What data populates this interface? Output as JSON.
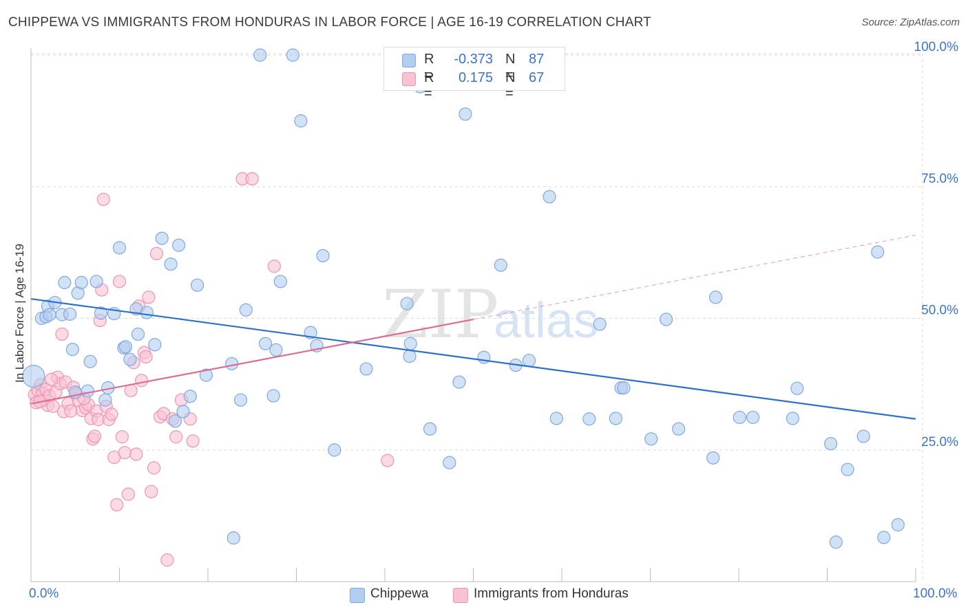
{
  "title": "CHIPPEWA VS IMMIGRANTS FROM HONDURAS IN LABOR FORCE | AGE 16-19 CORRELATION CHART",
  "source": "Source: ZipAtlas.com",
  "watermark": {
    "zip": "ZIP",
    "atlas": "atlas"
  },
  "legend": {
    "r_label": "R =",
    "n_label": "N =",
    "rows": [
      {
        "series": "Chippewa",
        "r": "-0.373",
        "n": "87"
      },
      {
        "series": "Immigrants from Honduras",
        "r": "0.175",
        "n": "67"
      }
    ]
  },
  "colors": {
    "chippewa_fill": "#b3cdf0",
    "chippewa_stroke": "#7fa8df",
    "chippewa_line": "#2a6fd1",
    "honduras_fill": "#f7c3d3",
    "honduras_stroke": "#ee93b1",
    "honduras_line": "#e06a96",
    "axis_text": "#3a74c9",
    "grid": "#d9d9d9"
  },
  "chart_data": {
    "type": "scatter",
    "title": "CHIPPEWA VS IMMIGRANTS FROM HONDURAS IN LABOR FORCE | AGE 16-19 CORRELATION CHART",
    "xlabel": "",
    "ylabel": "In Labor Force | Age 16-19",
    "xlim": [
      0,
      100
    ],
    "ylim": [
      0,
      102
    ],
    "x_tick_labels": [
      "0.0%",
      "100.0%"
    ],
    "y_ticks": [
      25,
      50,
      75,
      100
    ],
    "y_tick_labels": [
      "25.0%",
      "50.0%",
      "75.0%",
      "100.0%"
    ],
    "grid": true,
    "legend_position": "top-center",
    "series": [
      {
        "name": "Chippewa",
        "points": [
          [
            0.3,
            39.0
          ],
          [
            1.2,
            50.0
          ],
          [
            1.7,
            50.3
          ],
          [
            1.9,
            52.3
          ],
          [
            2.1,
            50.7
          ],
          [
            2.7,
            53.0
          ],
          [
            3.5,
            50.7
          ],
          [
            3.8,
            56.8
          ],
          [
            4.4,
            50.8
          ],
          [
            4.7,
            44.1
          ],
          [
            5.3,
            54.8
          ],
          [
            5.7,
            56.8
          ],
          [
            6.4,
            36.2
          ],
          [
            6.7,
            41.8
          ],
          [
            7.4,
            57.0
          ],
          [
            7.9,
            51.0
          ],
          [
            8.4,
            34.5
          ],
          [
            8.7,
            36.8
          ],
          [
            9.4,
            50.9
          ],
          [
            10.0,
            63.4
          ],
          [
            10.5,
            44.4
          ],
          [
            10.7,
            44.6
          ],
          [
            11.2,
            42.2
          ],
          [
            11.9,
            51.8
          ],
          [
            12.1,
            47.0
          ],
          [
            13.1,
            51.1
          ],
          [
            14.0,
            45.0
          ],
          [
            14.8,
            65.2
          ],
          [
            15.8,
            60.3
          ],
          [
            16.3,
            30.5
          ],
          [
            16.7,
            63.9
          ],
          [
            17.2,
            32.3
          ],
          [
            18.0,
            35.2
          ],
          [
            18.8,
            56.3
          ],
          [
            19.8,
            39.2
          ],
          [
            22.7,
            41.4
          ],
          [
            22.9,
            8.3
          ],
          [
            23.7,
            34.5
          ],
          [
            24.3,
            51.6
          ],
          [
            25.9,
            100.0
          ],
          [
            26.5,
            45.2
          ],
          [
            27.4,
            35.3
          ],
          [
            27.7,
            44.0
          ],
          [
            28.2,
            57.0
          ],
          [
            29.6,
            100.0
          ],
          [
            30.5,
            87.5
          ],
          [
            31.6,
            47.3
          ],
          [
            32.3,
            44.8
          ],
          [
            33.0,
            61.9
          ],
          [
            34.3,
            25.0
          ],
          [
            37.9,
            40.4
          ],
          [
            42.5,
            52.8
          ],
          [
            42.8,
            42.8
          ],
          [
            42.9,
            45.2
          ],
          [
            44.0,
            94.0
          ],
          [
            45.1,
            29.0
          ],
          [
            47.3,
            22.6
          ],
          [
            48.4,
            37.9
          ],
          [
            49.1,
            88.8
          ],
          [
            51.2,
            42.6
          ],
          [
            53.1,
            60.1
          ],
          [
            54.8,
            41.1
          ],
          [
            56.3,
            42.0
          ],
          [
            58.6,
            73.1
          ],
          [
            59.4,
            31.0
          ],
          [
            63.1,
            30.9
          ],
          [
            64.3,
            48.9
          ],
          [
            66.1,
            31.0
          ],
          [
            66.7,
            36.8
          ],
          [
            67.0,
            36.8
          ],
          [
            70.1,
            27.1
          ],
          [
            71.8,
            49.8
          ],
          [
            73.2,
            29.0
          ],
          [
            77.1,
            23.5
          ],
          [
            77.4,
            54.0
          ],
          [
            80.1,
            31.2
          ],
          [
            81.6,
            31.2
          ],
          [
            86.1,
            31.0
          ],
          [
            86.6,
            36.7
          ],
          [
            90.4,
            26.2
          ],
          [
            91.0,
            7.5
          ],
          [
            92.3,
            21.3
          ],
          [
            94.1,
            27.6
          ],
          [
            95.7,
            62.6
          ],
          [
            96.4,
            8.4
          ],
          [
            98.0,
            10.8
          ],
          [
            5.0,
            36.0
          ]
        ]
      },
      {
        "name": "Immigrants from Honduras",
        "points": [
          [
            0.4,
            35.5
          ],
          [
            0.6,
            34.0
          ],
          [
            0.8,
            36.3
          ],
          [
            1.1,
            37.4
          ],
          [
            1.3,
            35.8
          ],
          [
            1.5,
            34.5
          ],
          [
            1.7,
            36.5
          ],
          [
            1.9,
            33.5
          ],
          [
            2.1,
            35.3
          ],
          [
            2.5,
            33.3
          ],
          [
            2.8,
            36.0
          ],
          [
            3.0,
            38.8
          ],
          [
            3.3,
            37.6
          ],
          [
            3.5,
            47.0
          ],
          [
            3.7,
            32.3
          ],
          [
            3.9,
            37.9
          ],
          [
            4.2,
            33.8
          ],
          [
            4.5,
            32.4
          ],
          [
            4.8,
            36.9
          ],
          [
            5.1,
            35.7
          ],
          [
            5.4,
            34.4
          ],
          [
            5.8,
            32.5
          ],
          [
            6.2,
            33.0
          ],
          [
            6.5,
            33.6
          ],
          [
            6.8,
            31.0
          ],
          [
            7.0,
            27.1
          ],
          [
            7.2,
            27.6
          ],
          [
            7.4,
            32.4
          ],
          [
            7.6,
            30.8
          ],
          [
            7.8,
            49.6
          ],
          [
            8.0,
            55.4
          ],
          [
            8.2,
            72.6
          ],
          [
            8.5,
            33.3
          ],
          [
            8.8,
            30.8
          ],
          [
            9.1,
            31.8
          ],
          [
            9.4,
            23.6
          ],
          [
            9.7,
            14.6
          ],
          [
            10.0,
            57.0
          ],
          [
            10.3,
            27.5
          ],
          [
            10.6,
            24.5
          ],
          [
            11.0,
            16.6
          ],
          [
            11.3,
            36.3
          ],
          [
            11.6,
            41.6
          ],
          [
            11.9,
            24.2
          ],
          [
            12.2,
            52.3
          ],
          [
            12.5,
            38.2
          ],
          [
            12.8,
            43.5
          ],
          [
            13.0,
            42.7
          ],
          [
            13.3,
            54.0
          ],
          [
            13.6,
            17.1
          ],
          [
            13.9,
            21.6
          ],
          [
            14.2,
            62.3
          ],
          [
            14.6,
            31.3
          ],
          [
            15.0,
            31.9
          ],
          [
            15.4,
            4.1
          ],
          [
            16.0,
            30.9
          ],
          [
            16.4,
            27.5
          ],
          [
            17.0,
            34.5
          ],
          [
            18.3,
            26.7
          ],
          [
            18.0,
            30.9
          ],
          [
            23.9,
            76.5
          ],
          [
            25.0,
            76.5
          ],
          [
            27.5,
            59.9
          ],
          [
            40.3,
            23.0
          ],
          [
            1.0,
            34.2
          ],
          [
            2.3,
            38.4
          ],
          [
            6.0,
            34.8
          ]
        ]
      }
    ],
    "trendlines": [
      {
        "series": "Chippewa",
        "x": [
          0,
          100
        ],
        "y": [
          53.7,
          30.9
        ],
        "style": "solid"
      },
      {
        "series": "Immigrants from Honduras",
        "x": [
          0,
          50
        ],
        "y": [
          33.8,
          49.8
        ],
        "style": "solid"
      },
      {
        "series": "Immigrants from Honduras",
        "x": [
          50,
          100
        ],
        "y": [
          49.8,
          65.8
        ],
        "style": "dashed"
      }
    ]
  }
}
